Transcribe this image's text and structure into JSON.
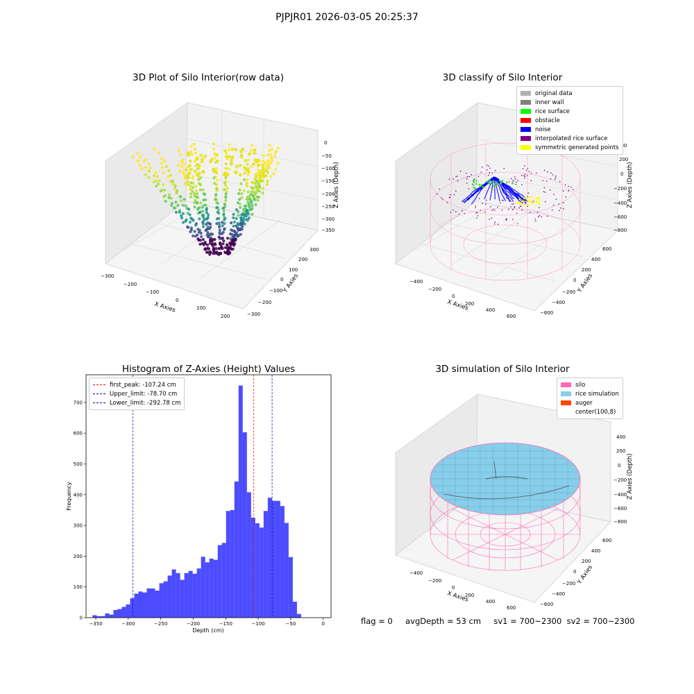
{
  "figure": {
    "suptitle": "PJPJR01 2026-03-05 20:25:37"
  },
  "panels": {
    "raw": {
      "title": "3D Plot of Silo Interior(row data)",
      "xlabel": "X Axies",
      "ylabel": "Y Axies",
      "zlabel": "Z Axies (Depth)",
      "xticks": [
        "−300",
        "−200",
        "−100",
        "0",
        "100",
        "200"
      ],
      "yticks": [
        "−300",
        "−200",
        "−100",
        "0",
        "100",
        "200",
        "300"
      ],
      "zticks": [
        "0",
        "−50",
        "−100",
        "−150",
        "−200",
        "−250",
        "−300",
        "−350"
      ]
    },
    "classify": {
      "title": "3D classify of Silo Interior",
      "xlabel": "X Axies",
      "ylabel": "Y Axies",
      "zlabel": "Z Axies (Depth)",
      "xticks": [
        "−400",
        "−200",
        "0",
        "200",
        "400",
        "600"
      ],
      "yticks": [
        "−600",
        "−400",
        "−200",
        "0",
        "200",
        "400",
        "600"
      ],
      "zticks": [
        "400",
        "200",
        "0",
        "−200",
        "−400",
        "−600",
        "−800"
      ],
      "legend": [
        {
          "label": "original data",
          "color": "#b0b0b0"
        },
        {
          "label": "inner wall",
          "color": "#808080"
        },
        {
          "label": "rice surface",
          "color": "#00ff00"
        },
        {
          "label": "obstacle",
          "color": "#ff0000"
        },
        {
          "label": "noise",
          "color": "#0000ff"
        },
        {
          "label": "interpolated rice surface",
          "color": "#800080"
        },
        {
          "label": "symmetric generated points",
          "color": "#ffff00"
        }
      ]
    },
    "simulation": {
      "title": "3D simulation of Silo Interior",
      "xlabel": "X Axies",
      "ylabel": "Y Axies",
      "zlabel": "Z Axies (Depth)",
      "xticks": [
        "−400",
        "−200",
        "0",
        "200",
        "400",
        "600"
      ],
      "yticks": [
        "−600",
        "−400",
        "−200",
        "0",
        "200",
        "400",
        "600"
      ],
      "zticks": [
        "400",
        "200",
        "0",
        "−200",
        "−400",
        "−600",
        "−800"
      ],
      "legend": [
        {
          "label": "silo",
          "color": "#ff69b4"
        },
        {
          "label": "rice simulation",
          "color": "#87ceeb"
        },
        {
          "label": "auger",
          "color": "#ff4500"
        },
        {
          "label": "center(100,8)",
          "color": "#ffffff"
        }
      ]
    }
  },
  "status": {
    "text": "flag = 0     avgDepth = 53 cm     sv1 = 700~2300  sv2 = 700~2300"
  },
  "chart_data": {
    "type": "bar",
    "title": "Histogram of Z-Axies (Height) Values",
    "xlabel": "Depth (cm)",
    "ylabel": "Frequency",
    "xlim": [
      -365,
      12
    ],
    "ylim": [
      0,
      790
    ],
    "xticks": [
      -350,
      -300,
      -250,
      -200,
      -150,
      -100,
      -50,
      0
    ],
    "yticks": [
      0,
      100,
      200,
      300,
      400,
      500,
      600,
      700
    ],
    "bin_start": -355,
    "bin_width": 6.42,
    "values": [
      8,
      5,
      5,
      14,
      10,
      25,
      28,
      35,
      43,
      63,
      78,
      85,
      82,
      95,
      95,
      88,
      112,
      118,
      137,
      157,
      145,
      123,
      145,
      152,
      143,
      160,
      198,
      180,
      192,
      188,
      236,
      243,
      347,
      350,
      443,
      755,
      603,
      408,
      325,
      307,
      293,
      347,
      390,
      380,
      380,
      363,
      308,
      197,
      52,
      12
    ],
    "bar_color": "#0000ff",
    "vlines": [
      {
        "label": "first_peak: -107.24 cm",
        "x": -107.24,
        "color": "#ff0000"
      },
      {
        "label": "Upper_limit: -78.70 cm",
        "x": -78.7,
        "color": "#0000aa"
      },
      {
        "label": "Lower_limit: -292.78 cm",
        "x": -292.78,
        "color": "#0000aa"
      }
    ],
    "legend_position": "upper-left"
  }
}
